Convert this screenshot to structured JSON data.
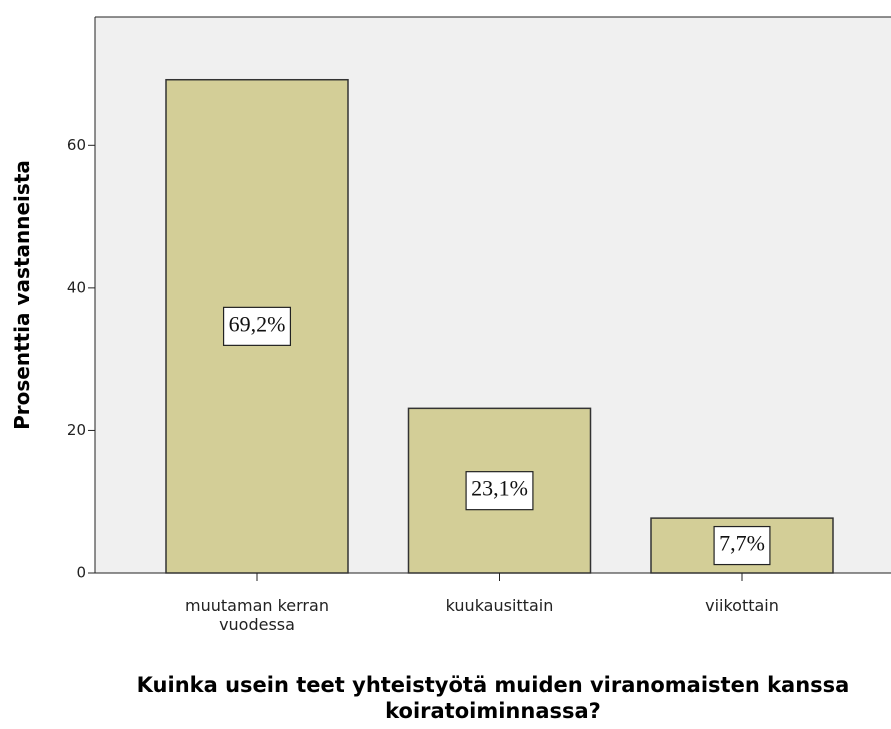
{
  "chart_data": {
    "type": "bar",
    "title": "Kuinka usein teet yhteistyötä muiden viranomaisten kanssa koiratoiminnassa?",
    "y_label": "Prosenttia vastanneista",
    "categories": [
      "muutaman kerran vuodessa",
      "kuukausittain",
      "viikottain"
    ],
    "values": [
      69.2,
      23.1,
      7.7
    ],
    "value_labels": [
      "69,2%",
      "23,1%",
      "7,7%"
    ],
    "color": "#d3ce97",
    "ylim": [
      0,
      78
    ],
    "yticks": [
      0,
      20,
      40,
      60
    ],
    "grid": false
  }
}
